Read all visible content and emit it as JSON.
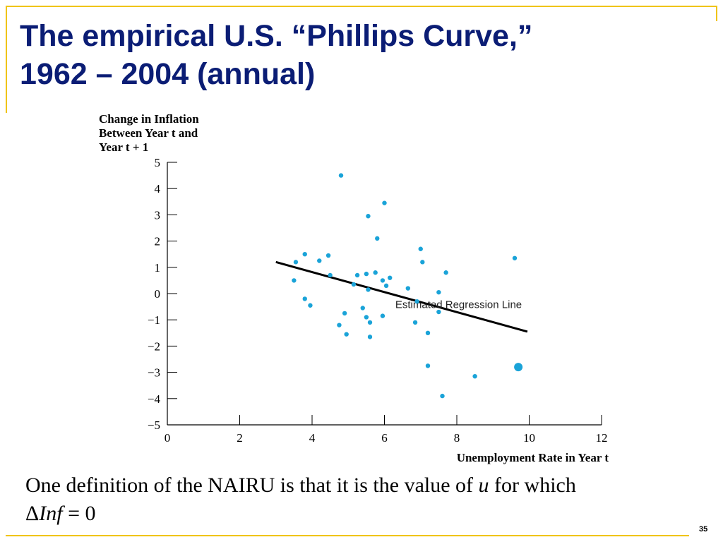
{
  "slide": {
    "title_line1": "The empirical U.S. “Phillips Curve,”",
    "title_line2": "1962 – 2004 (annual)",
    "caption_pre": "One definition of the NAIRU is that it is the value of ",
    "caption_var": "u",
    "caption_post": " for which",
    "caption_delta": "Δ",
    "caption_inf": "Inf",
    "caption_eq": " = 0",
    "page_number": "35",
    "accent_color": "#f0c419",
    "title_color": "#0b1d75"
  },
  "chart_data": {
    "type": "scatter",
    "ylabel_lines": [
      "Change in Inflation",
      "Between Year t and",
      "Year t + 1"
    ],
    "xlabel": "Unemployment Rate in Year t",
    "xlim": [
      0,
      12
    ],
    "ylim": [
      -5,
      5
    ],
    "x_ticks": [
      "0",
      "2",
      "4",
      "6",
      "8",
      "10",
      "12"
    ],
    "y_ticks": [
      "5",
      "4",
      "3",
      "2",
      "1",
      "0",
      "−1",
      "−2",
      "−3",
      "−4",
      "−5"
    ],
    "point_color": "#1aa3d8",
    "line_color": "#000000",
    "regression_line": {
      "label": "Estimated Regression Line",
      "x": [
        3.0,
        9.95
      ],
      "y": [
        1.2,
        -1.45
      ]
    },
    "highlight_point": {
      "x": 9.7,
      "y": -2.8
    },
    "points": [
      {
        "x": 3.5,
        "y": 0.5
      },
      {
        "x": 3.55,
        "y": 1.2
      },
      {
        "x": 3.8,
        "y": 1.5
      },
      {
        "x": 3.8,
        "y": -0.2
      },
      {
        "x": 3.95,
        "y": -0.45
      },
      {
        "x": 4.2,
        "y": 1.25
      },
      {
        "x": 4.45,
        "y": 1.45
      },
      {
        "x": 4.5,
        "y": 0.7
      },
      {
        "x": 4.75,
        "y": -1.2
      },
      {
        "x": 4.8,
        "y": 4.5
      },
      {
        "x": 4.9,
        "y": -0.75
      },
      {
        "x": 4.95,
        "y": -1.55
      },
      {
        "x": 5.15,
        "y": 0.35
      },
      {
        "x": 5.25,
        "y": 0.7
      },
      {
        "x": 5.4,
        "y": -0.55
      },
      {
        "x": 5.5,
        "y": 0.75
      },
      {
        "x": 5.5,
        "y": -0.9
      },
      {
        "x": 5.55,
        "y": 2.95
      },
      {
        "x": 5.6,
        "y": -1.1
      },
      {
        "x": 5.6,
        "y": -1.65
      },
      {
        "x": 5.75,
        "y": 0.8
      },
      {
        "x": 5.8,
        "y": 2.1
      },
      {
        "x": 5.95,
        "y": -0.85
      },
      {
        "x": 5.95,
        "y": 0.5
      },
      {
        "x": 6.0,
        "y": 3.45
      },
      {
        "x": 6.05,
        "y": 0.3
      },
      {
        "x": 6.15,
        "y": 0.6
      },
      {
        "x": 6.65,
        "y": 0.2
      },
      {
        "x": 6.85,
        "y": -1.1
      },
      {
        "x": 6.9,
        "y": -0.3
      },
      {
        "x": 7.0,
        "y": 1.7
      },
      {
        "x": 7.05,
        "y": 1.2
      },
      {
        "x": 7.2,
        "y": -1.5
      },
      {
        "x": 7.2,
        "y": -2.75
      },
      {
        "x": 7.5,
        "y": 0.05
      },
      {
        "x": 7.5,
        "y": -0.7
      },
      {
        "x": 7.6,
        "y": -3.9
      },
      {
        "x": 7.7,
        "y": 0.8
      },
      {
        "x": 8.5,
        "y": -3.15
      },
      {
        "x": 9.6,
        "y": 1.35
      },
      {
        "x": 5.55,
        "y": 0.15
      }
    ]
  }
}
